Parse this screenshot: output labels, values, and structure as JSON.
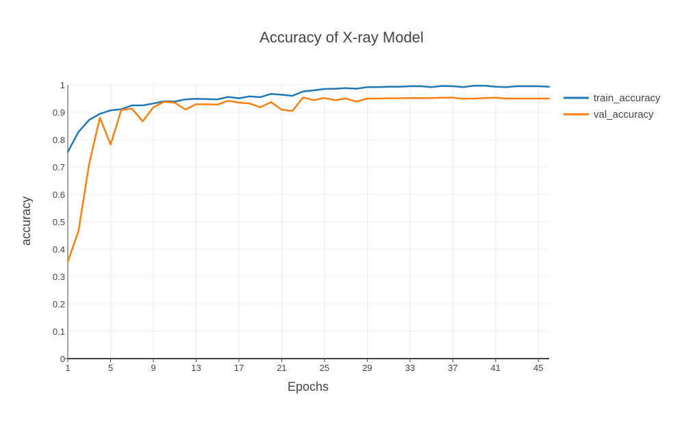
{
  "chart_data": {
    "type": "line",
    "title": "Accuracy of X-ray Model",
    "xlabel": "Epochs",
    "ylabel": "accuracy",
    "xlim": [
      1,
      46
    ],
    "ylim": [
      0,
      1
    ],
    "x_ticks": [
      1,
      5,
      9,
      13,
      17,
      21,
      25,
      29,
      33,
      37,
      41,
      45
    ],
    "y_ticks": [
      0,
      0.1,
      0.2,
      0.3,
      0.4,
      0.5,
      0.6,
      0.7,
      0.8,
      0.9,
      1
    ],
    "y_tick_labels": [
      "0",
      "0.1",
      "0.2",
      "0.3",
      "0.4",
      "0.5",
      "0.6",
      "0.7",
      "0.8",
      "0.9",
      "1"
    ],
    "grid": true,
    "legend_position": "top-right",
    "x": [
      1,
      2,
      3,
      4,
      5,
      6,
      7,
      8,
      9,
      10,
      11,
      12,
      13,
      14,
      15,
      16,
      17,
      18,
      19,
      20,
      21,
      22,
      23,
      24,
      25,
      26,
      27,
      28,
      29,
      30,
      31,
      32,
      33,
      34,
      35,
      36,
      37,
      38,
      39,
      40,
      41,
      42,
      43,
      44,
      45,
      46
    ],
    "series": [
      {
        "name": "train_accuracy",
        "color": "#1f77b4",
        "values": [
          0.755,
          0.828,
          0.872,
          0.894,
          0.907,
          0.911,
          0.925,
          0.925,
          0.932,
          0.94,
          0.939,
          0.947,
          0.949,
          0.948,
          0.947,
          0.956,
          0.951,
          0.958,
          0.955,
          0.967,
          0.964,
          0.96,
          0.976,
          0.98,
          0.985,
          0.986,
          0.988,
          0.986,
          0.992,
          0.992,
          0.993,
          0.993,
          0.995,
          0.995,
          0.992,
          0.996,
          0.995,
          0.992,
          0.997,
          0.997,
          0.993,
          0.992,
          0.995,
          0.995,
          0.995,
          0.993
        ]
      },
      {
        "name": "val_accuracy",
        "color": "#ff7f0e",
        "values": [
          0.354,
          0.466,
          0.712,
          0.88,
          0.782,
          0.908,
          0.913,
          0.867,
          0.918,
          0.938,
          0.935,
          0.91,
          0.929,
          0.929,
          0.928,
          0.942,
          0.935,
          0.932,
          0.918,
          0.937,
          0.909,
          0.905,
          0.954,
          0.944,
          0.952,
          0.944,
          0.95,
          0.939,
          0.95,
          0.95,
          0.951,
          0.951,
          0.952,
          0.952,
          0.952,
          0.953,
          0.953,
          0.949,
          0.95,
          0.952,
          0.953,
          0.95,
          0.95,
          0.95,
          0.95,
          0.95
        ]
      }
    ]
  }
}
